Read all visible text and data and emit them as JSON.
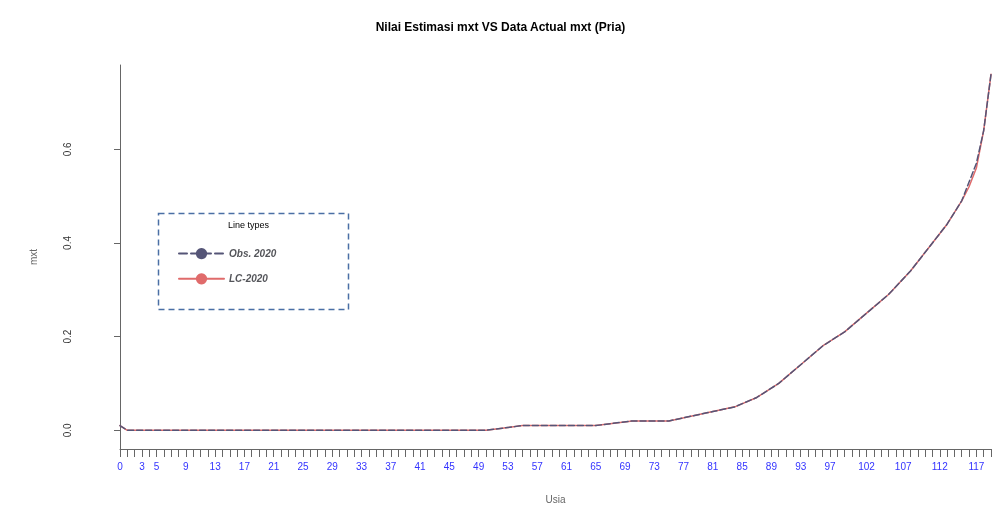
{
  "chart_data": {
    "type": "line",
    "title": "Nilai Estimasi mxt VS Data Actual mxt (Pria)",
    "xlabel": "Usia",
    "ylabel": "mxt",
    "legend_title": "Line types",
    "legend": "left",
    "xlim": [
      0,
      119
    ],
    "ylim": [
      -0.04,
      0.78
    ],
    "yticks": [
      {
        "value": 0,
        "label": "0.0"
      },
      {
        "value": 0.2,
        "label": "0.2"
      },
      {
        "value": 0.4,
        "label": "0.4"
      },
      {
        "value": 0.6,
        "label": "0.6"
      }
    ],
    "xticks": [
      0,
      {
        "value": 1,
        "label": null
      },
      {
        "value": 2,
        "label": null
      },
      3,
      {
        "value": 4,
        "label": null
      },
      5,
      {
        "value": 6,
        "label": null
      },
      {
        "value": 7,
        "label": null
      },
      {
        "value": 8,
        "label": null
      },
      9,
      {
        "value": 10,
        "label": null
      },
      {
        "value": 11,
        "label": null
      },
      {
        "value": 12,
        "label": null
      },
      13,
      {
        "value": 14,
        "label": null
      },
      {
        "value": 15,
        "label": null
      },
      {
        "value": 16,
        "label": null
      },
      17,
      {
        "value": 18,
        "label": null
      },
      {
        "value": 19,
        "label": null
      },
      {
        "value": 20,
        "label": null
      },
      21,
      {
        "value": 22,
        "label": null
      },
      {
        "value": 23,
        "label": null
      },
      {
        "value": 24,
        "label": null
      },
      25,
      {
        "value": 26,
        "label": null
      },
      {
        "value": 27,
        "label": null
      },
      {
        "value": 28,
        "label": null
      },
      29,
      {
        "value": 30,
        "label": null
      },
      {
        "value": 31,
        "label": null
      },
      {
        "value": 32,
        "label": null
      },
      33,
      {
        "value": 34,
        "label": null
      },
      {
        "value": 35,
        "label": null
      },
      {
        "value": 36,
        "label": null
      },
      37,
      {
        "value": 38,
        "label": null
      },
      {
        "value": 39,
        "label": null
      },
      {
        "value": 40,
        "label": null
      },
      41,
      {
        "value": 42,
        "label": null
      },
      {
        "value": 43,
        "label": null
      },
      {
        "value": 44,
        "label": null
      },
      45,
      {
        "value": 46,
        "label": null
      },
      {
        "value": 47,
        "label": null
      },
      {
        "value": 48,
        "label": null
      },
      49,
      {
        "value": 50,
        "label": null
      },
      {
        "value": 51,
        "label": null
      },
      {
        "value": 52,
        "label": null
      },
      53,
      {
        "value": 54,
        "label": null
      },
      {
        "value": 55,
        "label": null
      },
      {
        "value": 56,
        "label": null
      },
      57,
      {
        "value": 58,
        "label": null
      },
      {
        "value": 59,
        "label": null
      },
      {
        "value": 60,
        "label": null
      },
      61,
      {
        "value": 62,
        "label": null
      },
      {
        "value": 63,
        "label": null
      },
      {
        "value": 64,
        "label": null
      },
      65,
      {
        "value": 66,
        "label": null
      },
      {
        "value": 67,
        "label": null
      },
      {
        "value": 68,
        "label": null
      },
      69,
      {
        "value": 70,
        "label": null
      },
      {
        "value": 71,
        "label": null
      },
      {
        "value": 72,
        "label": null
      },
      73,
      {
        "value": 74,
        "label": null
      },
      {
        "value": 75,
        "label": null
      },
      {
        "value": 76,
        "label": null
      },
      77,
      {
        "value": 78,
        "label": null
      },
      {
        "value": 79,
        "label": null
      },
      {
        "value": 80,
        "label": null
      },
      81,
      {
        "value": 82,
        "label": null
      },
      {
        "value": 83,
        "label": null
      },
      {
        "value": 84,
        "label": null
      },
      85,
      {
        "value": 86,
        "label": null
      },
      {
        "value": 87,
        "label": null
      },
      {
        "value": 88,
        "label": null
      },
      89,
      {
        "value": 90,
        "label": null
      },
      {
        "value": 91,
        "label": null
      },
      {
        "value": 92,
        "label": null
      },
      93,
      {
        "value": 94,
        "label": null
      },
      {
        "value": 95,
        "label": null
      },
      {
        "value": 96,
        "label": null
      },
      97,
      {
        "value": 98,
        "label": null
      },
      {
        "value": 99,
        "label": null
      },
      {
        "value": 100,
        "label": null
      },
      {
        "value": 101,
        "label": null
      },
      102,
      {
        "value": 103,
        "label": null
      },
      {
        "value": 104,
        "label": null
      },
      {
        "value": 105,
        "label": null
      },
      {
        "value": 106,
        "label": null
      },
      107,
      {
        "value": 108,
        "label": null
      },
      {
        "value": 109,
        "label": null
      },
      {
        "value": 110,
        "label": null
      },
      {
        "value": 111,
        "label": null
      },
      112,
      {
        "value": 113,
        "label": null
      },
      {
        "value": 114,
        "label": null
      },
      {
        "value": 115,
        "label": null
      },
      {
        "value": 116,
        "label": null
      },
      117,
      {
        "value": 118,
        "label": null
      },
      {
        "value": 119,
        "label": null
      }
    ],
    "x": [
      0,
      1,
      5,
      10,
      15,
      20,
      25,
      30,
      35,
      40,
      45,
      50,
      55,
      60,
      65,
      70,
      75,
      78,
      81,
      84,
      87,
      90,
      93,
      96,
      99,
      102,
      105,
      108,
      111,
      113,
      115,
      116,
      117,
      118,
      119
    ],
    "series": [
      {
        "name": "Obs. 2020",
        "color": "#555577",
        "line_style": "dashed",
        "values": [
          0.01,
          0.0,
          0.0,
          0.0,
          0.0,
          0.0,
          0.0,
          0.0,
          0.0,
          0.0,
          0.0,
          0.0,
          0.01,
          0.01,
          0.01,
          0.02,
          0.02,
          0.03,
          0.04,
          0.05,
          0.07,
          0.1,
          0.14,
          0.18,
          0.21,
          0.25,
          0.29,
          0.34,
          0.4,
          0.44,
          0.49,
          0.53,
          0.57,
          0.64,
          0.76
        ]
      },
      {
        "name": "LC-2020",
        "color": "#e06b6b",
        "line_style": "solid",
        "values": [
          0.01,
          0.0,
          0.0,
          0.0,
          0.0,
          0.0,
          0.0,
          0.0,
          0.0,
          0.0,
          0.0,
          0.0,
          0.01,
          0.01,
          0.01,
          0.02,
          0.02,
          0.03,
          0.04,
          0.05,
          0.07,
          0.1,
          0.14,
          0.18,
          0.21,
          0.25,
          0.29,
          0.34,
          0.4,
          0.44,
          0.49,
          0.52,
          0.56,
          0.64,
          0.76
        ]
      }
    ]
  }
}
